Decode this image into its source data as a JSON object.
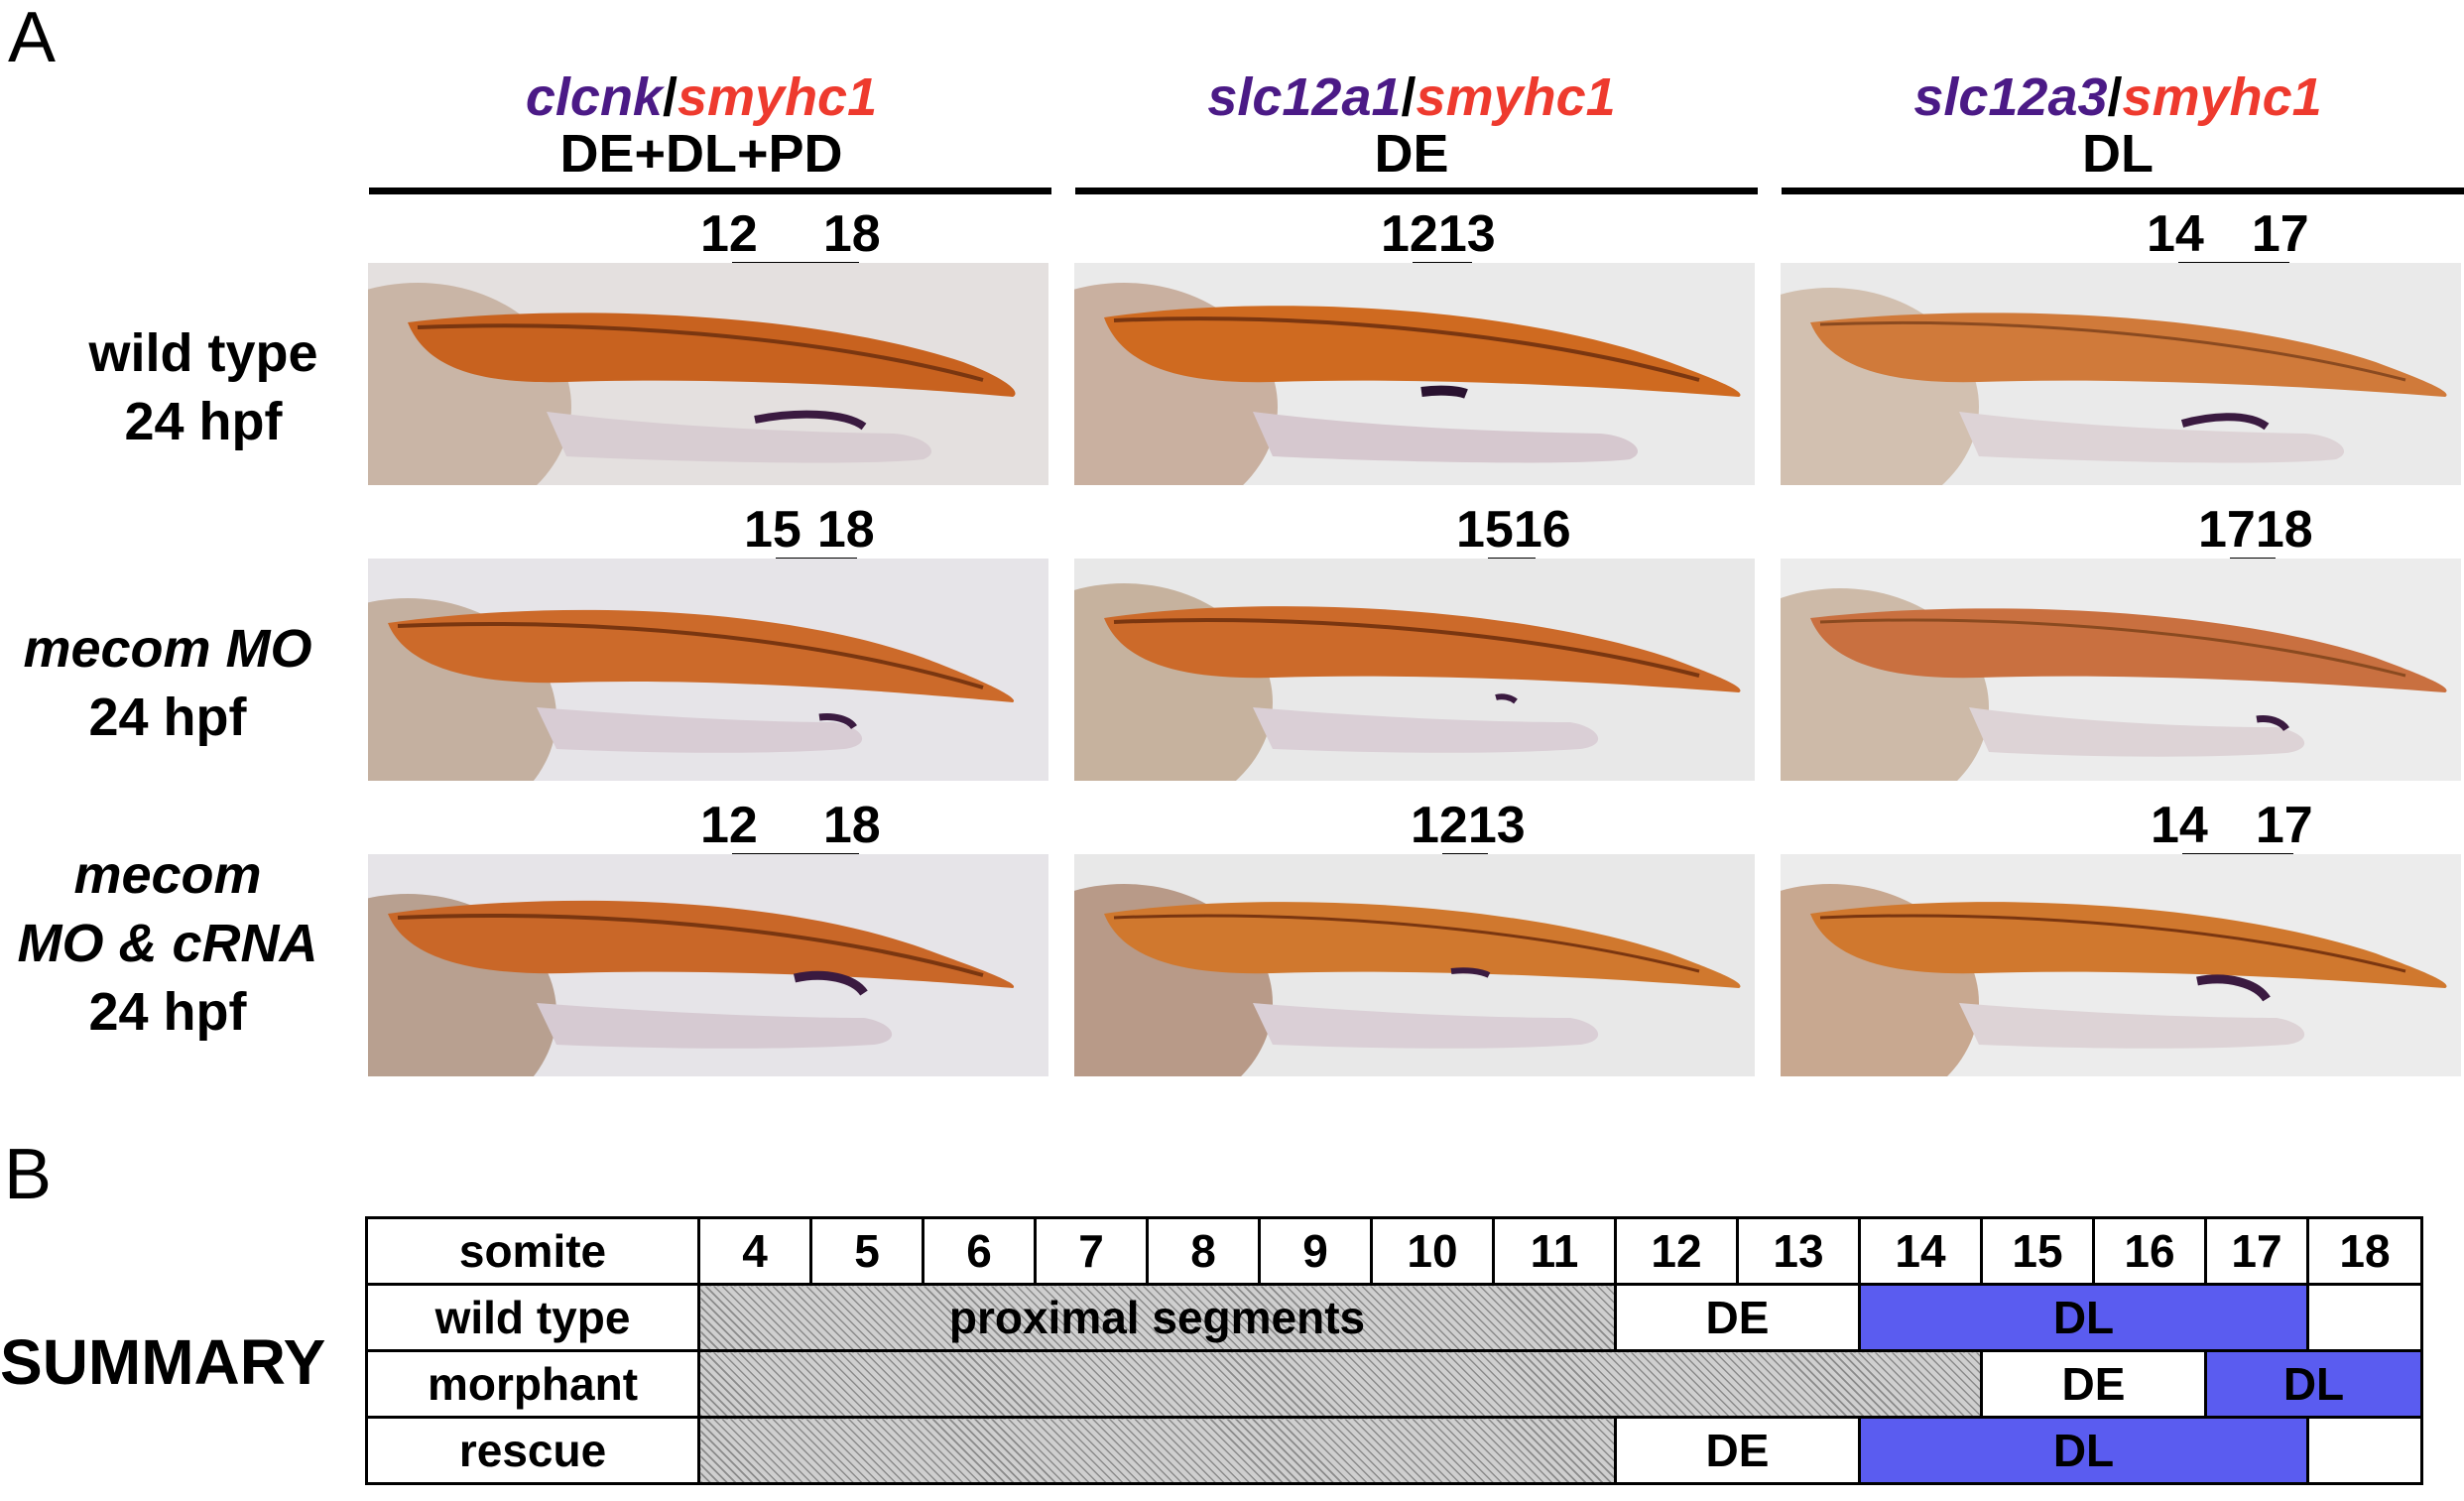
{
  "panel_labels": {
    "a": "A",
    "b": "B"
  },
  "columns": [
    {
      "probe": "clcnk",
      "sep": "/",
      "marker": "smyhc1",
      "region": "DE+DL+PD"
    },
    {
      "probe": "slc12a1",
      "sep": "/",
      "marker": "smyhc1",
      "region": "DE"
    },
    {
      "probe": "slc12a3",
      "sep": "/",
      "marker": "smyhc1",
      "region": "DL"
    }
  ],
  "rows": [
    {
      "line1": "wild type",
      "line1_italic": "",
      "line2": "",
      "stage": "24 hpf"
    },
    {
      "line1": "",
      "line1_italic": "mecom MO",
      "line2": "",
      "stage": "24 hpf"
    },
    {
      "line1": "",
      "line1_italic": "mecom",
      "line2": "MO & cRNA",
      "stage": "24 hpf"
    }
  ],
  "somite_labels": [
    [
      {
        "a": "12",
        "b": "18"
      },
      {
        "a": "12",
        "b": "13"
      },
      {
        "a": "14",
        "b": "17"
      }
    ],
    [
      {
        "a": "15",
        "b": "18"
      },
      {
        "a": "15",
        "b": "16"
      },
      {
        "a": "17",
        "b": "18"
      }
    ],
    [
      {
        "a": "12",
        "b": "18"
      },
      {
        "a": "12",
        "b": "13"
      },
      {
        "a": "14",
        "b": "17"
      }
    ]
  ],
  "summary": {
    "title": "SUMMARY",
    "header_label": "somite",
    "somites": [
      "4",
      "5",
      "6",
      "7",
      "8",
      "9",
      "10",
      "11",
      "12",
      "13",
      "14",
      "15",
      "16",
      "17",
      "18"
    ],
    "rows": [
      {
        "label": "wild type",
        "proximal_text": "proximal segments",
        "de": "DE",
        "dl": "DL"
      },
      {
        "label": "morphant",
        "proximal_text": "",
        "de": "DE",
        "dl": "DL"
      },
      {
        "label": "rescue",
        "proximal_text": "",
        "de": "DE",
        "dl": "DL"
      }
    ]
  },
  "colors": {
    "probe": "#4b1a86",
    "marker": "#ee3a2e",
    "dl_fill": "#5a5cf0",
    "embryo_stain": "#c8621f"
  }
}
